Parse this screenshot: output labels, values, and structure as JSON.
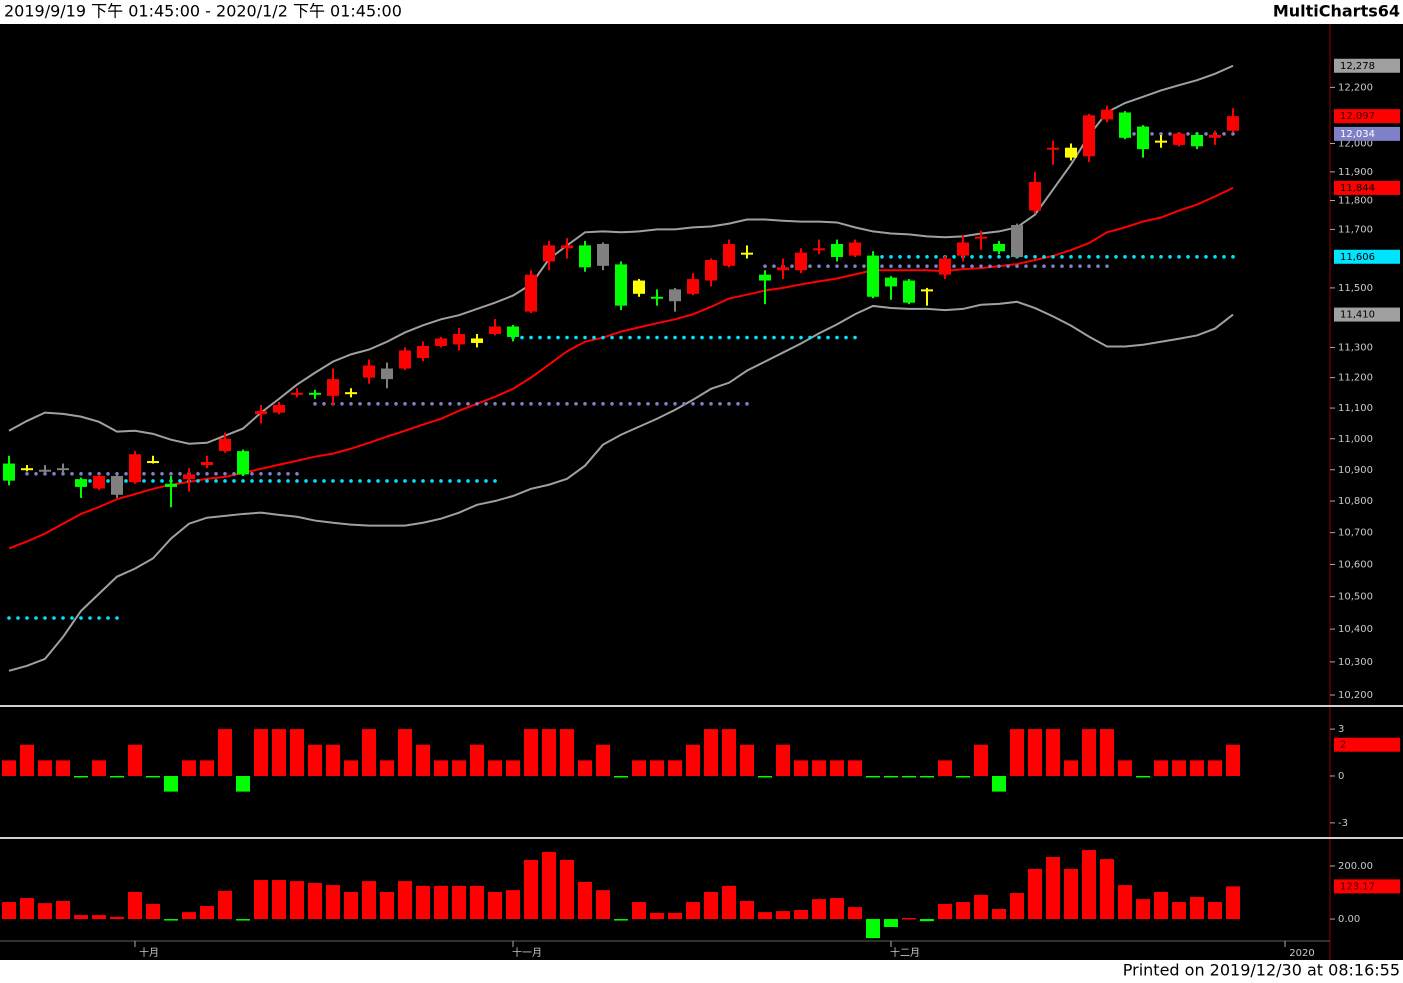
{
  "header": {
    "range": "2019/9/19 下午 01:45:00 - 2020/1/2 下午 01:45:00",
    "brand": "MultiCharts64"
  },
  "footer": "Printed on 2019/12/30 at 08:16:55",
  "chart_data": [
    {
      "type": "candlestick",
      "log_scale": true,
      "ylim": [
        10170,
        12430
      ],
      "yticks": [
        {
          "value": 12200,
          "label": "12,200"
        },
        {
          "value": 12000,
          "label": "12,000"
        },
        {
          "value": 11900,
          "label": "11,900"
        },
        {
          "value": 11800,
          "label": "11,800"
        },
        {
          "value": 11700,
          "label": "11,700"
        },
        {
          "value": 11500,
          "label": "11,500"
        },
        {
          "value": 11300,
          "label": "11,300"
        },
        {
          "value": 11200,
          "label": "11,200"
        },
        {
          "value": 11100,
          "label": "11,100"
        },
        {
          "value": 11000,
          "label": "11,000"
        },
        {
          "value": 10900,
          "label": "10,900"
        },
        {
          "value": 10800,
          "label": "10,800"
        },
        {
          "value": 10700,
          "label": "10,700"
        },
        {
          "value": 10600,
          "label": "10,600"
        },
        {
          "value": 10500,
          "label": "10,500"
        },
        {
          "value": 10400,
          "label": "10,400"
        },
        {
          "value": 10300,
          "label": "10,300"
        },
        {
          "value": 10200,
          "label": "10,200"
        }
      ],
      "categories": [
        null,
        null,
        null,
        null,
        null,
        null,
        null,
        "十月",
        null,
        null,
        null,
        null,
        null,
        null,
        null,
        null,
        null,
        null,
        null,
        null,
        null,
        null,
        null,
        null,
        null,
        null,
        null,
        null,
        "十一月",
        null,
        null,
        null,
        null,
        null,
        null,
        null,
        null,
        null,
        null,
        null,
        null,
        null,
        null,
        null,
        null,
        null,
        null,
        null,
        null,
        "十二月",
        null,
        null,
        null,
        null,
        null,
        null,
        null,
        null,
        null,
        null,
        null,
        null,
        null,
        null,
        null,
        null,
        null,
        null,
        null
      ],
      "x_end_label": "2020",
      "open": [
        10920,
        10905,
        10900,
        10905,
        10870,
        10840,
        10880,
        10860,
        10925,
        10855,
        10870,
        10915,
        10960,
        10960,
        11080,
        11085,
        11145,
        11150,
        11140,
        11152,
        11200,
        11230,
        11230,
        11265,
        11305,
        11310,
        11330,
        11345,
        11370,
        11420,
        11590,
        11635,
        11645,
        11650,
        11580,
        11525,
        11470,
        11495,
        11480,
        11525,
        11575,
        11620,
        11545,
        11560,
        11560,
        11630,
        11650,
        11610,
        11610,
        11535,
        11525,
        11495,
        11545,
        11610,
        11670,
        11650,
        11715,
        11765,
        11980,
        11985,
        11955,
        12085,
        12110,
        12060,
        12010,
        11995,
        12030,
        12020,
        12045
      ],
      "high": [
        10945,
        10915,
        10915,
        10920,
        10875,
        10885,
        10885,
        10960,
        10945,
        10880,
        10905,
        10945,
        11020,
        10965,
        11110,
        11120,
        11165,
        11160,
        11230,
        11165,
        11260,
        11250,
        11300,
        11320,
        11335,
        11365,
        11345,
        11395,
        11375,
        11560,
        11660,
        11670,
        11660,
        11655,
        11590,
        11530,
        11495,
        11500,
        11550,
        11600,
        11665,
        11645,
        11560,
        11600,
        11635,
        11665,
        11665,
        11665,
        11625,
        11540,
        11530,
        11500,
        11610,
        11680,
        11695,
        11660,
        11720,
        11900,
        12010,
        12000,
        12105,
        12135,
        12115,
        12065,
        12030,
        12040,
        12040,
        12045,
        12125
      ],
      "low": [
        10850,
        10895,
        10885,
        10890,
        10810,
        10835,
        10810,
        10855,
        10920,
        10780,
        10830,
        10905,
        10955,
        10880,
        11050,
        11080,
        11135,
        11130,
        11110,
        11135,
        11180,
        11165,
        11225,
        11255,
        11300,
        11290,
        11300,
        11340,
        11320,
        11415,
        11560,
        11600,
        11555,
        11560,
        11425,
        11470,
        11440,
        11420,
        11475,
        11505,
        11570,
        11600,
        11445,
        11530,
        11550,
        11615,
        11590,
        11605,
        11465,
        11460,
        11445,
        11440,
        11530,
        11590,
        11630,
        11615,
        11600,
        11755,
        11925,
        11940,
        11935,
        12075,
        12015,
        11950,
        11985,
        11990,
        11980,
        11995,
        12040
      ],
      "close": [
        10865,
        10903,
        10898,
        10903,
        10845,
        10880,
        10820,
        10950,
        10928,
        10845,
        10885,
        10925,
        11000,
        10885,
        11090,
        11110,
        11150,
        11145,
        11195,
        11148,
        11240,
        11195,
        11290,
        11305,
        11330,
        11345,
        11315,
        11370,
        11335,
        11545,
        11645,
        11645,
        11570,
        11575,
        11440,
        11480,
        11465,
        11455,
        11530,
        11595,
        11650,
        11615,
        11525,
        11570,
        11620,
        11635,
        11605,
        11655,
        11470,
        11505,
        11450,
        11490,
        11600,
        11655,
        11675,
        11625,
        11605,
        11865,
        11985,
        11950,
        12100,
        12120,
        12020,
        11980,
        12005,
        12035,
        11990,
        12030,
        12097
      ],
      "close_label": "12,097",
      "candle_colors": [
        "#00ff00",
        "#ffff00",
        "#808080",
        "#808080",
        "#00ff00",
        "#ff0000",
        "#808080",
        "#ff0000",
        "#ffff00",
        "#00ff00",
        "#ff0000",
        "#ff0000",
        "#ff0000",
        "#00ff00",
        "#ff0000",
        "#ff0000",
        "#ff0000",
        "#00ff00",
        "#ff0000",
        "#ffff00",
        "#ff0000",
        "#808080",
        "#ff0000",
        "#ff0000",
        "#ff0000",
        "#ff0000",
        "#ffff00",
        "#ff0000",
        "#00ff00",
        "#ff0000",
        "#ff0000",
        "#ff0000",
        "#00ff00",
        "#808080",
        "#00ff00",
        "#ffff00",
        "#00ff00",
        "#808080",
        "#ff0000",
        "#ff0000",
        "#ff0000",
        "#ffff00",
        "#00ff00",
        "#ff0000",
        "#ff0000",
        "#ff0000",
        "#00ff00",
        "#ff0000",
        "#00ff00",
        "#00ff00",
        "#00ff00",
        "#ffff00",
        "#ff0000",
        "#ff0000",
        "#ff0000",
        "#00ff00",
        "#808080",
        "#ff0000",
        "#ff0000",
        "#ffff00",
        "#ff0000",
        "#ff0000",
        "#00ff00",
        "#00ff00",
        "#ffff00",
        "#ff0000",
        "#00ff00",
        "#ff0000",
        "#ff0000"
      ],
      "series": [
        {
          "style": "line",
          "color": "#a0a0a0",
          "last_label": "12,278",
          "values": [
            11026,
            11058,
            11085,
            11081,
            11072,
            11055,
            11023,
            11026,
            11016,
            10997,
            10984,
            10987,
            11010,
            11033,
            11085,
            11130,
            11177,
            11216,
            11253,
            11277,
            11293,
            11319,
            11350,
            11374,
            11394,
            11408,
            11429,
            11450,
            11474,
            11512,
            11598,
            11645,
            11690,
            11693,
            11690,
            11693,
            11700,
            11700,
            11707,
            11710,
            11720,
            11734,
            11734,
            11730,
            11727,
            11727,
            11724,
            11707,
            11693,
            11686,
            11683,
            11676,
            11673,
            11676,
            11686,
            11693,
            11707,
            11751,
            11838,
            11926,
            12028,
            12111,
            12144,
            12166,
            12189,
            12208,
            12226,
            12249,
            12278
          ]
        },
        {
          "style": "line",
          "color": "#a0a0a0",
          "last_label": "11,410",
          "values": [
            10273,
            10288,
            10309,
            10376,
            10456,
            10509,
            10562,
            10587,
            10619,
            10681,
            10728,
            10747,
            10753,
            10759,
            10763,
            10756,
            10750,
            10738,
            10731,
            10725,
            10722,
            10722,
            10722,
            10731,
            10744,
            10763,
            10788,
            10800,
            10816,
            10839,
            10852,
            10871,
            10913,
            10981,
            11013,
            11039,
            11065,
            11094,
            11127,
            11163,
            11183,
            11223,
            11253,
            11283,
            11313,
            11347,
            11377,
            11411,
            11439,
            11432,
            11429,
            11429,
            11425,
            11429,
            11443,
            11446,
            11453,
            11432,
            11404,
            11373,
            11336,
            11303,
            11303,
            11309,
            11319,
            11329,
            11340,
            11363,
            11410
          ]
        },
        {
          "style": "line",
          "color": "#ff0000",
          "last_label": "11,844",
          "values": [
            10650,
            10672,
            10697,
            10728,
            10759,
            10781,
            10806,
            10822,
            10839,
            10852,
            10861,
            10871,
            10877,
            10890,
            10903,
            10916,
            10929,
            10942,
            10952,
            10968,
            10987,
            11007,
            11026,
            11046,
            11065,
            11091,
            11114,
            11137,
            11163,
            11200,
            11243,
            11287,
            11319,
            11333,
            11353,
            11367,
            11381,
            11394,
            11411,
            11436,
            11464,
            11477,
            11491,
            11500,
            11512,
            11522,
            11532,
            11546,
            11560,
            11560,
            11560,
            11560,
            11557,
            11564,
            11567,
            11574,
            11581,
            11595,
            11609,
            11629,
            11653,
            11690,
            11707,
            11727,
            11741,
            11765,
            11786,
            11814,
            11844
          ]
        },
        {
          "style": "dots",
          "color": "#00e5ff",
          "values": [
            10434,
            10434,
            10434,
            10434,
            10434,
            10434,
            10434,
            null,
            null,
            null,
            null,
            null,
            null,
            null,
            null,
            null,
            null,
            null,
            null,
            null,
            null,
            null,
            null,
            null,
            null,
            null,
            null,
            null,
            11333,
            11333,
            11333,
            11333,
            11333,
            11333,
            11333,
            11333,
            11333,
            11333,
            11333,
            11333,
            11333,
            11333,
            11333,
            11333,
            11333,
            11333,
            11333,
            11333,
            null,
            null,
            null,
            null,
            null,
            null,
            null,
            null,
            null,
            null,
            null,
            null,
            null,
            null,
            null,
            null,
            null,
            null,
            null,
            null,
            null
          ]
        },
        {
          "style": "dots",
          "color": "#00e5ff",
          "last_label": "11,606",
          "values": [
            null,
            null,
            null,
            null,
            10864,
            10864,
            10864,
            10864,
            10864,
            10864,
            10864,
            10864,
            10864,
            10864,
            10864,
            10864,
            10864,
            10864,
            10864,
            10864,
            10864,
            10864,
            10864,
            10864,
            10864,
            10864,
            10864,
            10864,
            null,
            null,
            null,
            null,
            null,
            null,
            null,
            null,
            null,
            null,
            null,
            null,
            null,
            null,
            null,
            null,
            null,
            null,
            null,
            null,
            11606,
            11606,
            11606,
            11606,
            11606,
            11606,
            11606,
            11606,
            11606,
            11606,
            11606,
            11606,
            11606,
            11606,
            11606,
            11606,
            11606,
            11606,
            11606,
            11606,
            11606
          ]
        },
        {
          "style": "dots",
          "color": "#8080c8",
          "last_label": "12,034",
          "values": [
            null,
            10887,
            10887,
            10887,
            10887,
            10887,
            10887,
            10887,
            10887,
            10887,
            10887,
            10887,
            10887,
            10887,
            10887,
            10887,
            10887,
            11114,
            11114,
            11114,
            11114,
            11114,
            11114,
            11114,
            11114,
            11114,
            11114,
            11114,
            11114,
            11114,
            11114,
            11114,
            11114,
            11114,
            11114,
            11114,
            11114,
            11114,
            11114,
            11114,
            11114,
            11114,
            11574,
            11574,
            11574,
            11574,
            11574,
            11574,
            11574,
            11574,
            11574,
            11574,
            11574,
            11574,
            11574,
            11574,
            11574,
            11574,
            11574,
            11574,
            11574,
            11574,
            12034,
            12034,
            12034,
            12034,
            12034,
            12034,
            12034
          ]
        }
      ]
    },
    {
      "type": "bar",
      "ylim": [
        -3.84,
        4.35
      ],
      "yticks": [
        3,
        0,
        -3
      ],
      "up_color": "#ff0000",
      "down_color": "#00ff00",
      "last_label": "2",
      "values": [
        1,
        2,
        1,
        1,
        0,
        1,
        0,
        2,
        0,
        -1,
        1,
        1,
        3,
        -1,
        3,
        3,
        3,
        2,
        2,
        1,
        3,
        1,
        3,
        2,
        1,
        1,
        2,
        1,
        1,
        3,
        3,
        3,
        1,
        2,
        0,
        1,
        1,
        1,
        2,
        3,
        3,
        2,
        0,
        2,
        1,
        1,
        1,
        1,
        0,
        0,
        0,
        0,
        1,
        0,
        2,
        -1,
        3,
        3,
        3,
        1,
        3,
        3,
        1,
        0,
        1,
        1,
        1,
        1,
        2
      ]
    },
    {
      "type": "bar",
      "ylim": [
        -79,
        298
      ],
      "yticks": [
        {
          "value": 200,
          "label": "200.00"
        },
        {
          "value": 0,
          "label": "0.00"
        }
      ],
      "up_color": "#ff0000",
      "down_color": "#00ff00",
      "last_label": "123.17",
      "values": [
        64,
        79,
        60,
        68,
        15,
        15,
        8,
        102,
        57,
        0,
        26,
        49,
        106,
        -2,
        147,
        147,
        143,
        136,
        128,
        102,
        143,
        102,
        143,
        125,
        125,
        125,
        125,
        102,
        109,
        223,
        253,
        223,
        140,
        109,
        -3,
        64,
        23,
        23,
        64,
        102,
        125,
        68,
        26,
        30,
        34,
        75,
        79,
        45,
        -72,
        -30,
        4,
        -8,
        57,
        64,
        91,
        38,
        98,
        189,
        234,
        189,
        260,
        226,
        128,
        75,
        102,
        64,
        83,
        64,
        123.17
      ]
    }
  ]
}
